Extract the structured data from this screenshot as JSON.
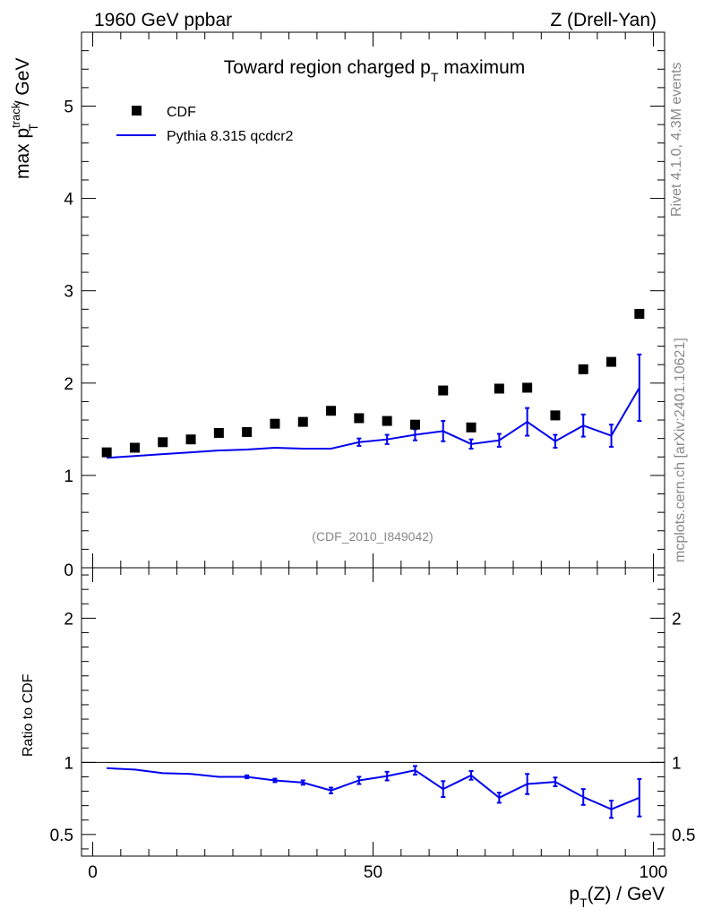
{
  "header": {
    "left": "1960 GeV ppbar",
    "right": "Z (Drell-Yan)"
  },
  "side": {
    "rivet": "Rivet 4.1.0,  4.3M events",
    "mcplots": "mcplots.cern.ch [arXiv:2401.10621]"
  },
  "watermark": "(CDF_2010_I849042)",
  "colors": {
    "mc": "#0000ee",
    "data": "#000000",
    "side_text": "#888888"
  },
  "chart_data": [
    {
      "type": "scatter",
      "title": "Toward region charged pT maximum",
      "title_main": "Toward region charged p",
      "title_sub": "T",
      "title_tail": " maximum",
      "ylabel": "max pT^track / GeV",
      "ylabel_main": "max p",
      "ylabel_sup": "track",
      "ylabel_sub": "T",
      "ylabel_tail": " / GeV",
      "xlim": [
        -2,
        102
      ],
      "ylim": [
        0,
        5.8
      ],
      "yticks": [
        1,
        2,
        3,
        4,
        5
      ],
      "ytick_labels": [
        "1",
        "2",
        "3",
        "4",
        "5"
      ],
      "y_partial_label": "0",
      "legend": {
        "position": "top-left",
        "data_label": "CDF",
        "mc_label": "Pythia 8.315 qcdcr2"
      },
      "x": [
        2.5,
        7.5,
        12.5,
        17.5,
        22.5,
        27.5,
        32.5,
        37.5,
        42.5,
        47.5,
        52.5,
        57.5,
        62.5,
        67.5,
        72.5,
        77.5,
        82.5,
        87.5,
        92.5,
        97.5
      ],
      "series": [
        {
          "name": "CDF",
          "style": "markers",
          "values": [
            1.25,
            1.3,
            1.36,
            1.39,
            1.46,
            1.47,
            1.56,
            1.58,
            1.7,
            1.62,
            1.59,
            1.55,
            1.92,
            1.52,
            1.94,
            1.95,
            1.65,
            2.15,
            2.23,
            2.75
          ]
        },
        {
          "name": "Pythia 8.315 qcdcr2",
          "style": "line",
          "values": [
            1.19,
            1.21,
            1.23,
            1.25,
            1.27,
            1.28,
            1.3,
            1.29,
            1.29,
            1.36,
            1.39,
            1.44,
            1.48,
            1.34,
            1.38,
            1.58,
            1.37,
            1.54,
            1.43,
            1.95
          ],
          "errors": [
            0.01,
            0.01,
            0.01,
            0.01,
            0.01,
            0.015,
            0.015,
            0.02,
            0.025,
            0.04,
            0.05,
            0.06,
            0.11,
            0.05,
            0.07,
            0.15,
            0.07,
            0.12,
            0.12,
            0.36
          ]
        }
      ]
    },
    {
      "type": "line",
      "ylabel": "Ratio to CDF",
      "xlabel": "pT(Z) / GeV",
      "xlabel_main": "p",
      "xlabel_sub": "T",
      "xlabel_tail": "(Z) / GeV",
      "xlim": [
        -2,
        102
      ],
      "ylim": [
        0.35,
        2.35
      ],
      "yticks": [
        0.5,
        1,
        2
      ],
      "ytick_labels": [
        "0.5",
        "1",
        "2"
      ],
      "xticks": [
        0,
        50,
        100
      ],
      "xtick_labels": [
        "0",
        "50",
        "100"
      ],
      "reference": 1,
      "x": [
        2.5,
        7.5,
        12.5,
        17.5,
        22.5,
        27.5,
        32.5,
        37.5,
        42.5,
        47.5,
        52.5,
        57.5,
        62.5,
        67.5,
        72.5,
        77.5,
        82.5,
        87.5,
        92.5,
        97.5
      ],
      "series": [
        {
          "name": "Pythia 8.315 qcdcr2 / CDF",
          "values": [
            0.96,
            0.95,
            0.925,
            0.92,
            0.9,
            0.9,
            0.875,
            0.86,
            0.805,
            0.875,
            0.905,
            0.945,
            0.815,
            0.91,
            0.755,
            0.85,
            0.865,
            0.76,
            0.675,
            0.755
          ],
          "errors": [
            0.008,
            0.008,
            0.008,
            0.008,
            0.008,
            0.01,
            0.012,
            0.015,
            0.02,
            0.025,
            0.03,
            0.03,
            0.055,
            0.03,
            0.035,
            0.07,
            0.03,
            0.055,
            0.06,
            0.13
          ]
        }
      ]
    }
  ]
}
